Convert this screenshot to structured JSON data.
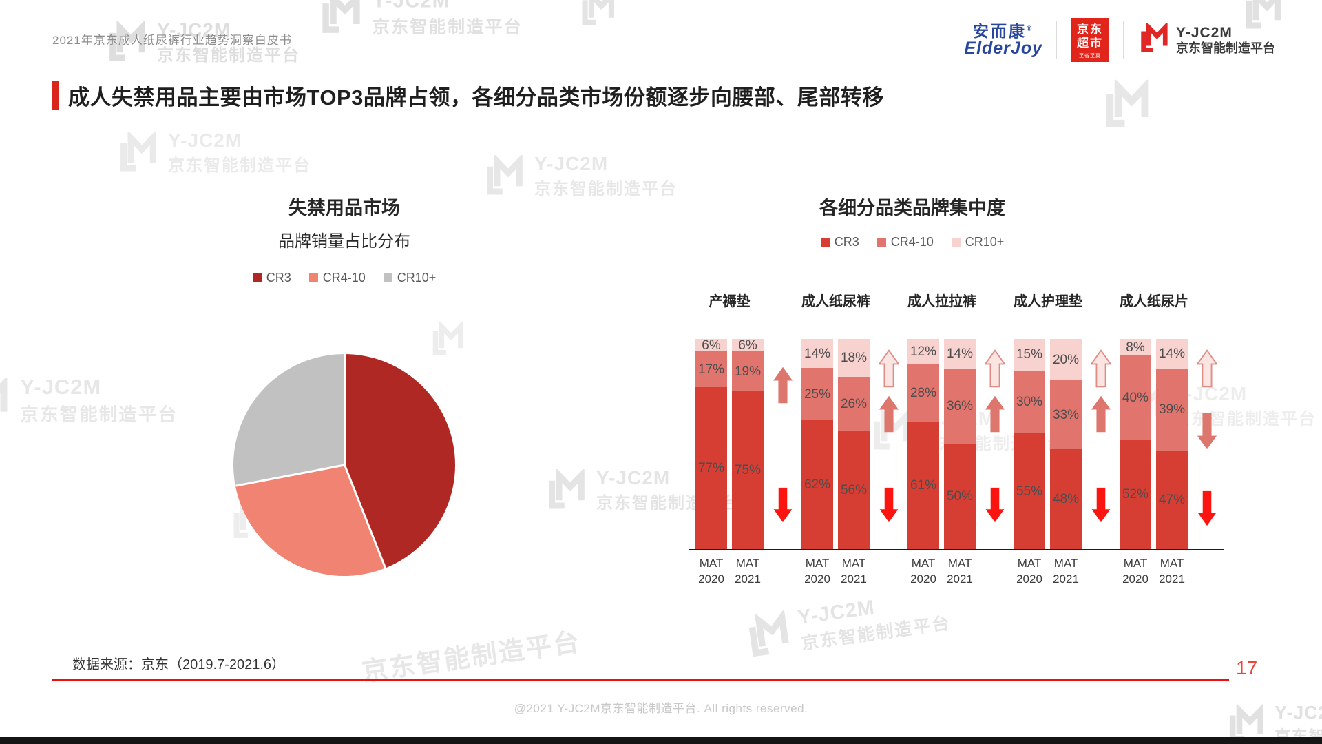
{
  "header": {
    "doc_title": "2021年京东成人纸尿裤行业趋势洞察白皮书",
    "logos": {
      "elderjoy_cn": "安而康",
      "elderjoy_reg": "®",
      "elderjoy_en": "ElderJoy",
      "jd_super_line1": "京东",
      "jd_super_line2": "超市",
      "jd_super_tagline": "至省至真",
      "yjc2m_name": "Y-JC2M",
      "yjc2m_sub": "京东智能制造平台"
    }
  },
  "slide": {
    "title": "成人失禁用品主要由市场TOP3品牌占领，各细分品类市场份额逐步向腰部、尾部转移",
    "source_note": "数据来源：京东（2019.7-2021.6）",
    "page_number": "17",
    "copyright": "@2021 Y-JC2M京东智能制造平台. All rights reserved."
  },
  "watermark": {
    "brand": "Y-JC2M",
    "sub": "京东智能制造平台"
  },
  "chart_data": [
    {
      "type": "pie",
      "title": "失禁用品市场",
      "subtitle": "品牌销量占比分布",
      "legend": [
        "CR3",
        "CR4-10",
        "CR10+"
      ],
      "legend_position": "top",
      "labels": [
        "CR3",
        "CR4-10",
        "CR10+"
      ],
      "values": [
        44,
        28,
        28
      ],
      "colors": [
        "#b02823",
        "#f18372",
        "#c2c1c1"
      ],
      "start_angle_deg": 0,
      "direction": "clockwise",
      "data_labels": "none (shares estimated from slice angles)"
    },
    {
      "type": "bar",
      "stacked": true,
      "title": "各细分品类品牌集中度",
      "unit": "%",
      "ylim": [
        0,
        100
      ],
      "grid": false,
      "legend": [
        "CR3",
        "CR4-10",
        "CR10+"
      ],
      "legend_position": "top",
      "colors": [
        "#d63e34",
        "#e1746d",
        "#f7d2cf"
      ],
      "series_order_bottom_to_top": [
        "CR3",
        "CR4-10",
        "CR10+"
      ],
      "categories": [
        "产褥垫",
        "成人纸尿裤",
        "成人拉拉裤",
        "成人护理垫",
        "成人纸尿片"
      ],
      "groups": [
        {
          "category": "产褥垫",
          "bars": [
            {
              "period": "MAT 2020",
              "values": [
                77,
                17,
                6
              ]
            },
            {
              "period": "MAT 2021",
              "values": [
                75,
                19,
                6
              ]
            }
          ],
          "trend_arrows": [
            {
              "segment": "CR4-10",
              "style": "salmon",
              "dir": "up",
              "offset": 38
            },
            {
              "segment": "CR3",
              "style": "red",
              "dir": "down",
              "offset": 215
            }
          ]
        },
        {
          "category": "成人纸尿裤",
          "bars": [
            {
              "period": "MAT 2020",
              "values": [
                62,
                25,
                14
              ]
            },
            {
              "period": "MAT 2021",
              "values": [
                56,
                26,
                18
              ]
            }
          ],
          "trend_arrows": [
            {
              "segment": "CR10+",
              "style": "hollow",
              "dir": "up",
              "offset": 15
            },
            {
              "segment": "CR4-10",
              "style": "salmon",
              "dir": "up",
              "offset": 80
            },
            {
              "segment": "CR3",
              "style": "red",
              "dir": "down",
              "offset": 215
            }
          ]
        },
        {
          "category": "成人拉拉裤",
          "bars": [
            {
              "period": "MAT 2020",
              "values": [
                61,
                28,
                12
              ]
            },
            {
              "period": "MAT 2021",
              "values": [
                50,
                36,
                14
              ]
            }
          ],
          "trend_arrows": [
            {
              "segment": "CR10+",
              "style": "hollow",
              "dir": "up",
              "offset": 15
            },
            {
              "segment": "CR4-10",
              "style": "salmon",
              "dir": "up",
              "offset": 80
            },
            {
              "segment": "CR3",
              "style": "red",
              "dir": "down",
              "offset": 215
            }
          ]
        },
        {
          "category": "成人护理垫",
          "bars": [
            {
              "period": "MAT 2020",
              "values": [
                55,
                30,
                15
              ]
            },
            {
              "period": "MAT 2021",
              "values": [
                48,
                33,
                20
              ]
            }
          ],
          "trend_arrows": [
            {
              "segment": "CR10+",
              "style": "hollow",
              "dir": "up",
              "offset": 15
            },
            {
              "segment": "CR4-10",
              "style": "salmon",
              "dir": "up",
              "offset": 80
            },
            {
              "segment": "CR3",
              "style": "red",
              "dir": "down",
              "offset": 215
            }
          ]
        },
        {
          "category": "成人纸尿片",
          "bars": [
            {
              "period": "MAT 2020",
              "values": [
                52,
                40,
                8
              ]
            },
            {
              "period": "MAT 2021",
              "values": [
                47,
                39,
                14
              ]
            }
          ],
          "trend_arrows": [
            {
              "segment": "CR10+",
              "style": "hollow",
              "dir": "up",
              "offset": 15
            },
            {
              "segment": "CR4-10",
              "style": "salmon",
              "dir": "down",
              "offset": 105
            },
            {
              "segment": "CR3",
              "style": "red",
              "dir": "down",
              "offset": 220
            }
          ]
        }
      ]
    }
  ]
}
